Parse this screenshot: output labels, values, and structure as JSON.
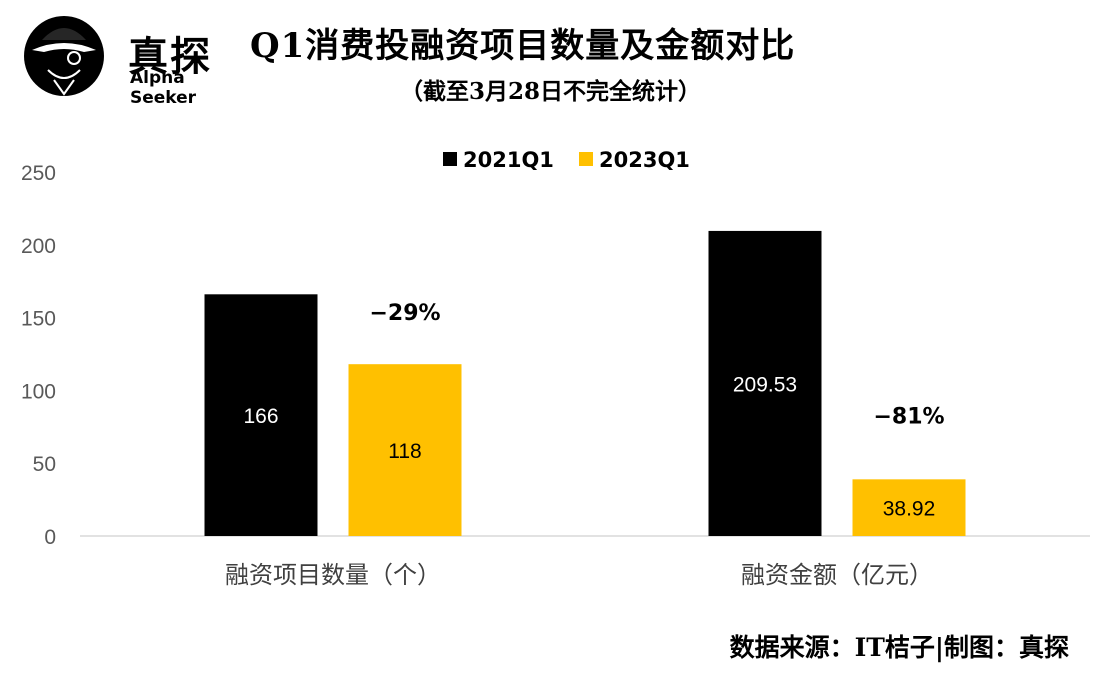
{
  "logo": {
    "name_cn": "真探",
    "name_en": "Alpha Seeker"
  },
  "title": "Q1消费投融资项目数量及金额对比",
  "subtitle": "（截至3月28日不完全统计）",
  "source": "数据来源：IT桔子|制图：真探",
  "colors": {
    "series_2021": "#000000",
    "series_2023": "#FFC000",
    "axis": "#d9d9d9",
    "tick_text": "#595959"
  },
  "chart_data": {
    "type": "bar",
    "categories": [
      "融资项目数量（个）",
      "融资金额（亿元）"
    ],
    "series": [
      {
        "name": "2021Q1",
        "values": [
          166,
          209.53
        ],
        "labels": [
          "166",
          "209.53"
        ]
      },
      {
        "name": "2023Q1",
        "values": [
          118,
          38.92
        ],
        "labels": [
          "118",
          "38.92"
        ]
      }
    ],
    "changes": [
      "−29%",
      "−81%"
    ],
    "yticks": [
      "0",
      "50",
      "100",
      "150",
      "200",
      "250"
    ],
    "ylim": [
      0,
      250
    ],
    "grid": false,
    "legend": "top"
  }
}
